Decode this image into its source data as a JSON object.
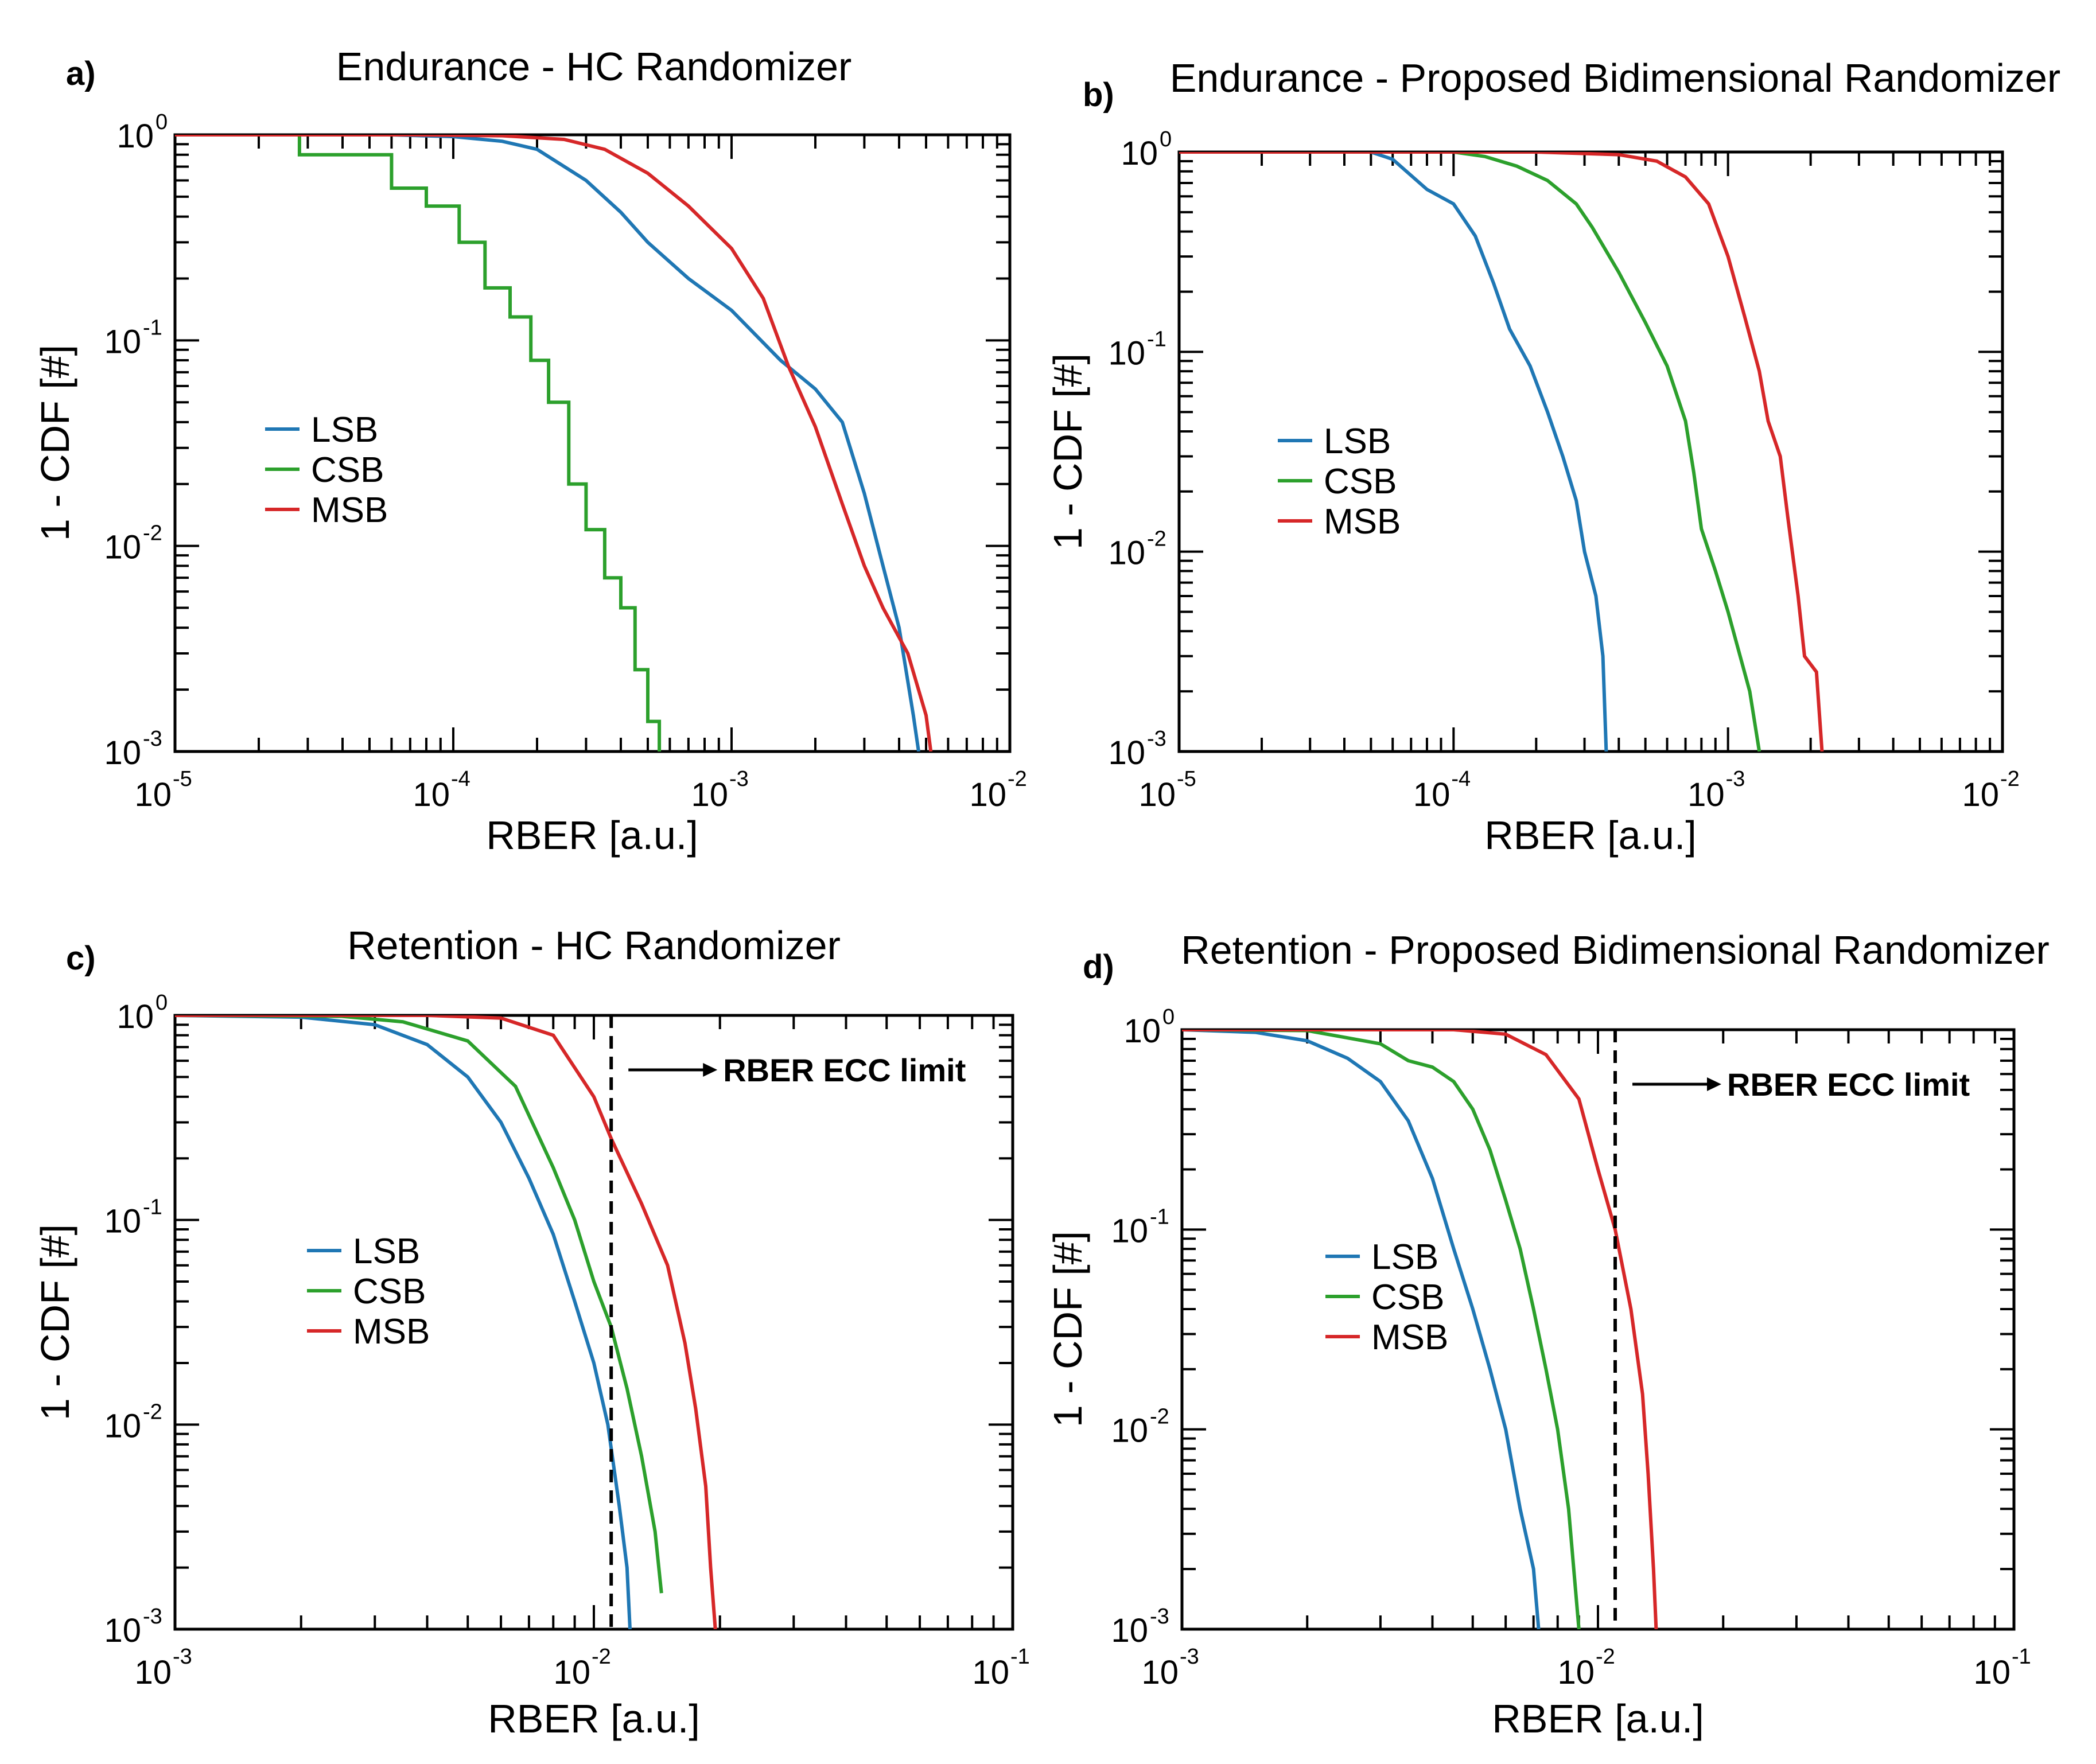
{
  "chart_data": [
    {
      "type": "line",
      "letter": "a)",
      "title": "Endurance - HC Randomizer",
      "xlabel": "RBER [a.u.]",
      "ylabel": "1 - CDF [#]",
      "xscale": "log",
      "yscale": "log",
      "xlim": [
        1e-05,
        0.01
      ],
      "ylim": [
        0.001,
        1
      ],
      "xticks": [
        {
          "base": "10",
          "exp": "-5",
          "value": 1e-05
        },
        {
          "base": "10",
          "exp": "-4",
          "value": 0.0001
        },
        {
          "base": "10",
          "exp": "-3",
          "value": 0.001
        },
        {
          "base": "10",
          "exp": "-2",
          "value": 0.01
        }
      ],
      "yticks": [
        {
          "base": "10",
          "exp": "-3",
          "value": 0.001
        },
        {
          "base": "10",
          "exp": "-2",
          "value": 0.01
        },
        {
          "base": "10",
          "exp": "-1",
          "value": 0.1
        },
        {
          "base": "10",
          "exp": "0",
          "value": 1
        }
      ],
      "legend_position": "center-left",
      "series": [
        {
          "name": "LSB",
          "color": "#1f77b4",
          "points": [
            [
              1e-05,
              1
            ],
            [
              6e-05,
              1
            ],
            [
              0.0001,
              0.98
            ],
            [
              0.00015,
              0.93
            ],
            [
              0.0002,
              0.85
            ],
            [
              0.0003,
              0.6
            ],
            [
              0.0004,
              0.42
            ],
            [
              0.0005,
              0.3
            ],
            [
              0.0007,
              0.2
            ],
            [
              0.001,
              0.14
            ],
            [
              0.0015,
              0.08
            ],
            [
              0.002,
              0.058
            ],
            [
              0.0025,
              0.04
            ],
            [
              0.003,
              0.018
            ],
            [
              0.0035,
              0.008
            ],
            [
              0.004,
              0.004
            ],
            [
              0.0045,
              0.0015
            ],
            [
              0.0047,
              0.001
            ]
          ]
        },
        {
          "name": "CSB",
          "color": "#2ca02c",
          "points": [
            [
              1e-05,
              1
            ],
            [
              2.8e-05,
              1
            ],
            [
              2.8e-05,
              0.8
            ],
            [
              6e-05,
              0.8
            ],
            [
              6e-05,
              0.55
            ],
            [
              8e-05,
              0.55
            ],
            [
              8e-05,
              0.45
            ],
            [
              0.000105,
              0.45
            ],
            [
              0.000105,
              0.3
            ],
            [
              0.00013,
              0.3
            ],
            [
              0.00013,
              0.18
            ],
            [
              0.00016,
              0.18
            ],
            [
              0.00016,
              0.13
            ],
            [
              0.00019,
              0.13
            ],
            [
              0.00019,
              0.08
            ],
            [
              0.00022,
              0.08
            ],
            [
              0.00022,
              0.05
            ],
            [
              0.00026,
              0.05
            ],
            [
              0.00026,
              0.02
            ],
            [
              0.0003,
              0.02
            ],
            [
              0.0003,
              0.012
            ],
            [
              0.00035,
              0.012
            ],
            [
              0.00035,
              0.007
            ],
            [
              0.0004,
              0.007
            ],
            [
              0.0004,
              0.005
            ],
            [
              0.00045,
              0.005
            ],
            [
              0.00045,
              0.0025
            ],
            [
              0.0005,
              0.0025
            ],
            [
              0.0005,
              0.0014
            ],
            [
              0.00055,
              0.0014
            ],
            [
              0.00055,
              0.001
            ]
          ]
        },
        {
          "name": "MSB",
          "color": "#d62728",
          "points": [
            [
              1e-05,
              1
            ],
            [
              7e-05,
              1
            ],
            [
              0.00015,
              0.99
            ],
            [
              0.00025,
              0.95
            ],
            [
              0.00035,
              0.85
            ],
            [
              0.0005,
              0.65
            ],
            [
              0.0007,
              0.45
            ],
            [
              0.001,
              0.28
            ],
            [
              0.0013,
              0.16
            ],
            [
              0.0016,
              0.075
            ],
            [
              0.002,
              0.038
            ],
            [
              0.0025,
              0.016
            ],
            [
              0.003,
              0.008
            ],
            [
              0.0035,
              0.005
            ],
            [
              0.0043,
              0.003
            ],
            [
              0.005,
              0.0015
            ],
            [
              0.0052,
              0.001
            ]
          ]
        }
      ]
    },
    {
      "type": "line",
      "letter": "b)",
      "title": "Endurance - Proposed Bidimensional Randomizer",
      "xlabel": "RBER [a.u.]",
      "ylabel": "1 - CDF [#]",
      "xscale": "log",
      "yscale": "log",
      "xlim": [
        1e-05,
        0.01
      ],
      "ylim": [
        0.001,
        1
      ],
      "xticks": [
        {
          "base": "10",
          "exp": "-5",
          "value": 1e-05
        },
        {
          "base": "10",
          "exp": "-4",
          "value": 0.0001
        },
        {
          "base": "10",
          "exp": "-3",
          "value": 0.001
        },
        {
          "base": "10",
          "exp": "-2",
          "value": 0.01
        }
      ],
      "yticks": [
        {
          "base": "10",
          "exp": "-3",
          "value": 0.001
        },
        {
          "base": "10",
          "exp": "-2",
          "value": 0.01
        },
        {
          "base": "10",
          "exp": "-1",
          "value": 0.1
        },
        {
          "base": "10",
          "exp": "0",
          "value": 1
        }
      ],
      "legend_position": "center-left",
      "series": [
        {
          "name": "LSB",
          "color": "#1f77b4",
          "points": [
            [
              1e-05,
              1
            ],
            [
              5e-05,
              1
            ],
            [
              6e-05,
              0.92
            ],
            [
              8e-05,
              0.65
            ],
            [
              0.0001,
              0.55
            ],
            [
              0.00012,
              0.38
            ],
            [
              0.00014,
              0.22
            ],
            [
              0.00016,
              0.13
            ],
            [
              0.00019,
              0.085
            ],
            [
              0.00022,
              0.05
            ],
            [
              0.00025,
              0.03
            ],
            [
              0.00028,
              0.018
            ],
            [
              0.0003,
              0.01
            ],
            [
              0.00033,
              0.006
            ],
            [
              0.00035,
              0.003
            ],
            [
              0.00036,
              0.001
            ]
          ]
        },
        {
          "name": "CSB",
          "color": "#2ca02c",
          "points": [
            [
              1e-05,
              1
            ],
            [
              0.0001,
              1
            ],
            [
              0.00013,
              0.95
            ],
            [
              0.00017,
              0.85
            ],
            [
              0.00022,
              0.72
            ],
            [
              0.00028,
              0.55
            ],
            [
              0.00032,
              0.42
            ],
            [
              0.0004,
              0.25
            ],
            [
              0.0005,
              0.14
            ],
            [
              0.0006,
              0.085
            ],
            [
              0.0007,
              0.045
            ],
            [
              0.00075,
              0.025
            ],
            [
              0.0008,
              0.013
            ],
            [
              0.0009,
              0.008
            ],
            [
              0.001,
              0.005
            ],
            [
              0.0012,
              0.002
            ],
            [
              0.0013,
              0.001
            ]
          ]
        },
        {
          "name": "MSB",
          "color": "#d62728",
          "points": [
            [
              1e-05,
              1
            ],
            [
              0.0002,
              1
            ],
            [
              0.0004,
              0.97
            ],
            [
              0.00055,
              0.9
            ],
            [
              0.0007,
              0.75
            ],
            [
              0.00085,
              0.55
            ],
            [
              0.001,
              0.3
            ],
            [
              0.00115,
              0.15
            ],
            [
              0.0013,
              0.08
            ],
            [
              0.0014,
              0.045
            ],
            [
              0.00155,
              0.03
            ],
            [
              0.00165,
              0.015
            ],
            [
              0.0018,
              0.006
            ],
            [
              0.0019,
              0.003
            ],
            [
              0.0021,
              0.0025
            ],
            [
              0.0022,
              0.001
            ]
          ]
        }
      ]
    },
    {
      "type": "line",
      "letter": "c)",
      "title": "Retention - HC Randomizer",
      "xlabel": "RBER [a.u.]",
      "ylabel": "1 - CDF [#]",
      "xscale": "log",
      "yscale": "log",
      "xlim": [
        0.001,
        0.1
      ],
      "ylim": [
        0.001,
        1
      ],
      "xticks": [
        {
          "base": "10",
          "exp": "-3",
          "value": 0.001
        },
        {
          "base": "10",
          "exp": "-2",
          "value": 0.01
        },
        {
          "base": "10",
          "exp": "-1",
          "value": 0.1
        }
      ],
      "yticks": [
        {
          "base": "10",
          "exp": "-3",
          "value": 0.001
        },
        {
          "base": "10",
          "exp": "-2",
          "value": 0.01
        },
        {
          "base": "10",
          "exp": "-1",
          "value": 0.1
        },
        {
          "base": "10",
          "exp": "0",
          "value": 1
        }
      ],
      "legend_position": "center-left",
      "annotation": {
        "text": "RBER ECC limit",
        "x": 0.011
      },
      "series": [
        {
          "name": "LSB",
          "color": "#1f77b4",
          "points": [
            [
              0.001,
              1
            ],
            [
              0.002,
              0.98
            ],
            [
              0.003,
              0.9
            ],
            [
              0.004,
              0.72
            ],
            [
              0.005,
              0.5
            ],
            [
              0.006,
              0.3
            ],
            [
              0.007,
              0.16
            ],
            [
              0.008,
              0.085
            ],
            [
              0.009,
              0.04
            ],
            [
              0.01,
              0.02
            ],
            [
              0.0108,
              0.01
            ],
            [
              0.0115,
              0.004
            ],
            [
              0.012,
              0.002
            ],
            [
              0.0122,
              0.001
            ]
          ]
        },
        {
          "name": "CSB",
          "color": "#2ca02c",
          "points": [
            [
              0.001,
              1
            ],
            [
              0.0025,
              0.99
            ],
            [
              0.0035,
              0.93
            ],
            [
              0.005,
              0.75
            ],
            [
              0.0065,
              0.45
            ],
            [
              0.008,
              0.18
            ],
            [
              0.009,
              0.1
            ],
            [
              0.01,
              0.05
            ],
            [
              0.011,
              0.03
            ],
            [
              0.012,
              0.015
            ],
            [
              0.013,
              0.007
            ],
            [
              0.014,
              0.003
            ],
            [
              0.0145,
              0.0015
            ]
          ]
        },
        {
          "name": "MSB",
          "color": "#d62728",
          "points": [
            [
              0.001,
              1
            ],
            [
              0.004,
              1
            ],
            [
              0.006,
              0.97
            ],
            [
              0.008,
              0.8
            ],
            [
              0.01,
              0.4
            ],
            [
              0.011,
              0.25
            ],
            [
              0.013,
              0.12
            ],
            [
              0.015,
              0.06
            ],
            [
              0.0165,
              0.025
            ],
            [
              0.0175,
              0.012
            ],
            [
              0.0185,
              0.005
            ],
            [
              0.019,
              0.002
            ],
            [
              0.0195,
              0.001
            ]
          ]
        }
      ]
    },
    {
      "type": "line",
      "letter": "d)",
      "title": "Retention - Proposed Bidimensional Randomizer",
      "xlabel": "RBER [a.u.]",
      "ylabel": "1 - CDF [#]",
      "xscale": "log",
      "yscale": "log",
      "xlim": [
        0.001,
        0.1
      ],
      "ylim": [
        0.001,
        1
      ],
      "xticks": [
        {
          "base": "10",
          "exp": "-3",
          "value": 0.001
        },
        {
          "base": "10",
          "exp": "-2",
          "value": 0.01
        },
        {
          "base": "10",
          "exp": "-1",
          "value": 0.1
        }
      ],
      "yticks": [
        {
          "base": "10",
          "exp": "-3",
          "value": 0.001
        },
        {
          "base": "10",
          "exp": "-2",
          "value": 0.01
        },
        {
          "base": "10",
          "exp": "-1",
          "value": 0.1
        },
        {
          "base": "10",
          "exp": "0",
          "value": 1
        }
      ],
      "legend_position": "center-left",
      "annotation": {
        "text": "RBER ECC limit",
        "x": 0.011
      },
      "series": [
        {
          "name": "LSB",
          "color": "#1f77b4",
          "points": [
            [
              0.001,
              1
            ],
            [
              0.0015,
              0.97
            ],
            [
              0.002,
              0.88
            ],
            [
              0.0025,
              0.72
            ],
            [
              0.003,
              0.55
            ],
            [
              0.0035,
              0.35
            ],
            [
              0.004,
              0.18
            ],
            [
              0.0045,
              0.08
            ],
            [
              0.005,
              0.04
            ],
            [
              0.0055,
              0.02
            ],
            [
              0.006,
              0.01
            ],
            [
              0.0065,
              0.004
            ],
            [
              0.007,
              0.002
            ],
            [
              0.0072,
              0.001
            ]
          ]
        },
        {
          "name": "CSB",
          "color": "#2ca02c",
          "points": [
            [
              0.001,
              1
            ],
            [
              0.002,
              0.99
            ],
            [
              0.003,
              0.85
            ],
            [
              0.0035,
              0.7
            ],
            [
              0.004,
              0.65
            ],
            [
              0.0045,
              0.55
            ],
            [
              0.005,
              0.4
            ],
            [
              0.0055,
              0.25
            ],
            [
              0.006,
              0.14
            ],
            [
              0.0065,
              0.08
            ],
            [
              0.007,
              0.04
            ],
            [
              0.0075,
              0.02
            ],
            [
              0.008,
              0.01
            ],
            [
              0.0085,
              0.004
            ],
            [
              0.009,
              0.001
            ]
          ]
        },
        {
          "name": "MSB",
          "color": "#d62728",
          "points": [
            [
              0.001,
              1
            ],
            [
              0.0045,
              1
            ],
            [
              0.006,
              0.95
            ],
            [
              0.0075,
              0.75
            ],
            [
              0.009,
              0.45
            ],
            [
              0.01,
              0.2
            ],
            [
              0.011,
              0.1
            ],
            [
              0.012,
              0.04
            ],
            [
              0.0128,
              0.015
            ],
            [
              0.0132,
              0.006
            ],
            [
              0.0136,
              0.002
            ],
            [
              0.0138,
              0.001
            ]
          ]
        }
      ]
    }
  ]
}
